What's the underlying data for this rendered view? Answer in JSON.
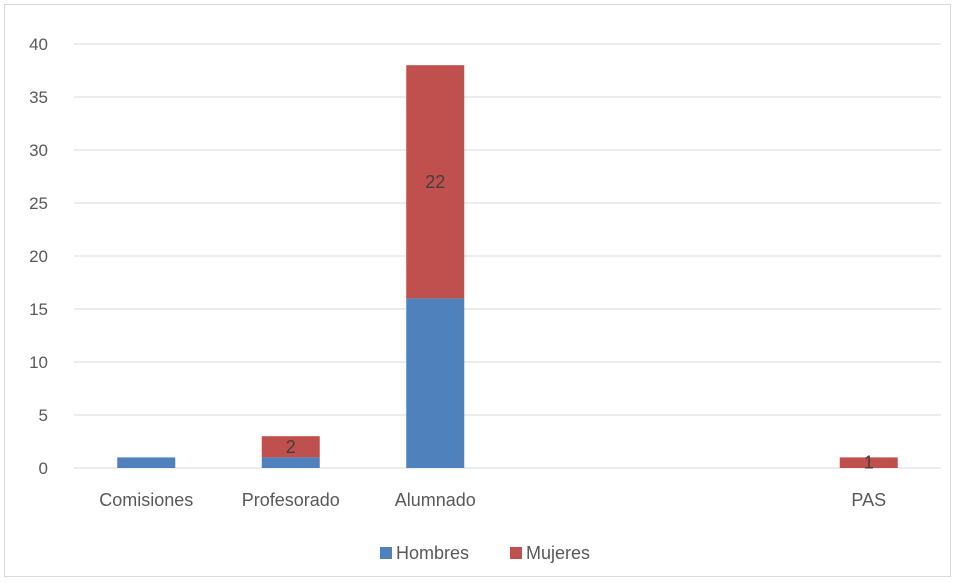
{
  "chart_data": {
    "type": "bar",
    "stacked": true,
    "categories": [
      "Comisiones",
      "Profesorado",
      "Alumnado",
      "",
      "",
      "PAS"
    ],
    "series": [
      {
        "name": "Hombres",
        "values": [
          1,
          1,
          16,
          0,
          0,
          0
        ],
        "color": "#4f81bd",
        "labels": [
          "",
          "",
          "",
          "",
          "",
          ""
        ]
      },
      {
        "name": "Mujeres",
        "values": [
          0,
          2,
          22,
          0,
          0,
          1
        ],
        "color": "#c0504d",
        "labels": [
          "",
          "2",
          "22",
          "",
          "",
          "1"
        ]
      }
    ],
    "yticks": [
      "0",
      "5",
      "10",
      "15",
      "20",
      "25",
      "30",
      "35",
      "40"
    ],
    "ylim": [
      0,
      40
    ],
    "grid": true,
    "legend": "bottom"
  }
}
